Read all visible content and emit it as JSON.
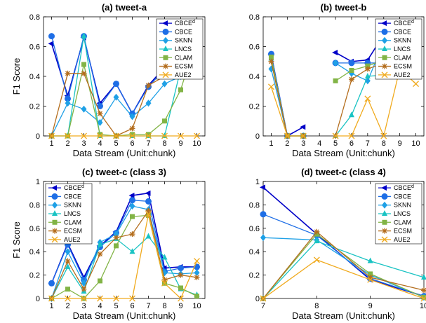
{
  "chart_data": [
    {
      "type": "line",
      "title": "(a) tweet-a",
      "xlabel": "Data Stream (Unit:chunk)",
      "ylabel": "F1 Score",
      "x": [
        1,
        2,
        3,
        4,
        5,
        6,
        7,
        8,
        9,
        10
      ],
      "xlim": [
        0.5,
        10.5
      ],
      "ylim": [
        0,
        0.8
      ],
      "yticks": [
        "0",
        "0.2",
        "0.4",
        "0.6",
        "0.8"
      ],
      "legend_position": "top-right",
      "series": [
        {
          "name": "CBCE",
          "sup": "d",
          "color": "#0000c8",
          "marker": "triangle-left",
          "values": [
            0.62,
            0.27,
            0.66,
            0.22,
            0.35,
            0.15,
            0.34,
            0.46,
            0.53,
            0.69
          ]
        },
        {
          "name": "CBCE",
          "sup": "",
          "color": "#1e6ee6",
          "marker": "circle",
          "values": [
            0.67,
            0.25,
            0.67,
            0.2,
            0.35,
            0.15,
            0.33,
            0.45,
            0.52,
            0.69
          ]
        },
        {
          "name": "SKNN",
          "sup": "",
          "color": "#1ea0e6",
          "marker": "diamond",
          "values": [
            0.0,
            0.22,
            0.18,
            0.09,
            0.26,
            0.13,
            0.22,
            0.35,
            0.4,
            0.67
          ]
        },
        {
          "name": "LNCS",
          "sup": "",
          "color": "#19c3c3",
          "marker": "triangle-up",
          "values": [
            0.0,
            0.0,
            0.67,
            0.0,
            0.0,
            0.0,
            0.0,
            0.0,
            0.45,
            0.55
          ]
        },
        {
          "name": "CLAM",
          "sup": "",
          "color": "#82b446",
          "marker": "square",
          "values": [
            0.0,
            0.0,
            0.48,
            0.01,
            0.0,
            0.01,
            0.01,
            0.1,
            0.31,
            0.66
          ]
        },
        {
          "name": "ECSM",
          "sup": "",
          "color": "#b46e1e",
          "marker": "star",
          "values": [
            0.0,
            0.42,
            0.42,
            0.15,
            0.0,
            0.05,
            0.34,
            0.4,
            0.48,
            0.6
          ]
        },
        {
          "name": "AUE2",
          "sup": "",
          "color": "#f0aa1e",
          "marker": "x",
          "values": [
            0.0,
            0.0,
            0.0,
            0.0,
            0.0,
            0.0,
            0.0,
            0.0,
            0.0,
            0.0
          ]
        }
      ]
    },
    {
      "type": "line",
      "title": "(b) tweet-b",
      "xlabel": "Data Stream (Unit:chunk)",
      "ylabel": "",
      "x": [
        1,
        2,
        3,
        4,
        5,
        6,
        7,
        8,
        9,
        10
      ],
      "xlim": [
        0.5,
        10.5
      ],
      "ylim": [
        0,
        0.8
      ],
      "yticks": [
        "0",
        "0.2",
        "0.4",
        "0.6",
        "0.8"
      ],
      "legend_position": "top-right",
      "series": [
        {
          "name": "CBCE",
          "sup": "d",
          "color": "#0000c8",
          "marker": "triangle-left",
          "values": [
            0.55,
            0.0,
            0.06,
            null,
            0.56,
            0.5,
            0.51,
            0.68,
            0.63,
            0.62
          ]
        },
        {
          "name": "CBCE",
          "sup": "",
          "color": "#1e6ee6",
          "marker": "circle",
          "values": [
            0.55,
            0.0,
            0.0,
            null,
            0.49,
            0.49,
            0.49,
            0.49,
            0.56,
            0.51
          ]
        },
        {
          "name": "SKNN",
          "sup": "",
          "color": "#1ea0e6",
          "marker": "diamond",
          "values": [
            0.45,
            0.0,
            0.0,
            null,
            0.49,
            0.42,
            0.37,
            0.63,
            0.53,
            0.51
          ]
        },
        {
          "name": "LNCS",
          "sup": "",
          "color": "#19c3c3",
          "marker": "triangle-up",
          "values": [
            0.52,
            0.0,
            0.0,
            null,
            0.0,
            0.14,
            0.4,
            0.41,
            0.55,
            0.56
          ]
        },
        {
          "name": "CLAM",
          "sup": "",
          "color": "#82b446",
          "marker": "square",
          "values": [
            0.53,
            0.0,
            0.0,
            null,
            0.37,
            0.44,
            0.47,
            0.51,
            0.57,
            0.57
          ]
        },
        {
          "name": "ECSM",
          "sup": "",
          "color": "#b46e1e",
          "marker": "star",
          "values": [
            0.5,
            0.0,
            0.0,
            null,
            0.0,
            0.38,
            0.45,
            0.49,
            0.57,
            0.52
          ]
        },
        {
          "name": "AUE2",
          "sup": "",
          "color": "#f0aa1e",
          "marker": "x",
          "values": [
            0.33,
            0.0,
            0.0,
            null,
            0.0,
            0.0,
            0.25,
            0.0,
            0.45,
            0.35
          ]
        }
      ]
    },
    {
      "type": "line",
      "title": "(c) tweet-c (class 3)",
      "xlabel": "Data Stream (Unit:chunk)",
      "ylabel": "F1 Score",
      "x": [
        1,
        2,
        3,
        4,
        5,
        6,
        7,
        8,
        9,
        10
      ],
      "xlim": [
        0.5,
        10.5
      ],
      "ylim": [
        0,
        1
      ],
      "yticks": [
        "0",
        "0.2",
        "0.4",
        "0.6",
        "0.8",
        "1"
      ],
      "legend_position": "top-left",
      "series": [
        {
          "name": "CBCE",
          "sup": "d",
          "color": "#0000c8",
          "marker": "triangle-left",
          "values": [
            0.13,
            0.47,
            0.18,
            0.45,
            0.57,
            0.88,
            0.9,
            0.26,
            0.27,
            0.27
          ]
        },
        {
          "name": "CBCE",
          "sup": "",
          "color": "#1e6ee6",
          "marker": "circle",
          "values": [
            0.13,
            0.46,
            0.16,
            0.44,
            0.56,
            0.84,
            0.83,
            0.23,
            0.26,
            0.27
          ]
        },
        {
          "name": "SKNN",
          "sup": "",
          "color": "#1ea0e6",
          "marker": "diamond",
          "values": [
            0.0,
            0.4,
            0.13,
            0.48,
            0.55,
            0.79,
            0.76,
            0.22,
            0.21,
            0.22
          ]
        },
        {
          "name": "LNCS",
          "sup": "",
          "color": "#19c3c3",
          "marker": "triangle-up",
          "values": [
            0.0,
            0.27,
            0.06,
            0.46,
            0.51,
            0.4,
            0.53,
            0.35,
            0.08,
            0.03
          ]
        },
        {
          "name": "CLAM",
          "sup": "",
          "color": "#82b446",
          "marker": "square",
          "values": [
            0.0,
            0.08,
            0.0,
            0.15,
            0.45,
            0.7,
            0.71,
            0.13,
            0.09,
            0.02
          ]
        },
        {
          "name": "ECSM",
          "sup": "",
          "color": "#b46e1e",
          "marker": "star",
          "values": [
            0.0,
            0.32,
            0.08,
            0.38,
            0.52,
            0.55,
            0.75,
            0.16,
            0.2,
            0.18
          ]
        },
        {
          "name": "AUE2",
          "sup": "",
          "color": "#f0aa1e",
          "marker": "x",
          "values": [
            0.0,
            0.0,
            0.0,
            0.0,
            0.0,
            0.0,
            0.72,
            0.13,
            0.0,
            0.32
          ]
        }
      ]
    },
    {
      "type": "line",
      "title": "(d) tweet-c (class 4)",
      "xlabel": "Data Stream (Unit:chunk)",
      "ylabel": "",
      "x": [
        7,
        8,
        9,
        10
      ],
      "xlim": [
        7,
        10
      ],
      "ylim": [
        0,
        1
      ],
      "yticks": [
        "0",
        "0.2",
        "0.4",
        "0.6",
        "0.8",
        "1"
      ],
      "legend_position": "top-right",
      "series": [
        {
          "name": "CBCE",
          "sup": "d",
          "color": "#0000c8",
          "marker": "triangle-left",
          "values": [
            0.95,
            0.55,
            0.16,
            0.02
          ]
        },
        {
          "name": "CBCE",
          "sup": "",
          "color": "#1e6ee6",
          "marker": "circle",
          "values": [
            0.72,
            0.54,
            0.17,
            0.02
          ]
        },
        {
          "name": "SKNN",
          "sup": "",
          "color": "#1ea0e6",
          "marker": "diamond",
          "values": [
            0.52,
            0.5,
            0.2,
            0.01
          ]
        },
        {
          "name": "LNCS",
          "sup": "",
          "color": "#19c3c3",
          "marker": "triangle-up",
          "values": [
            0.0,
            0.49,
            0.32,
            0.18
          ]
        },
        {
          "name": "CLAM",
          "sup": "",
          "color": "#82b446",
          "marker": "square",
          "values": [
            0.0,
            0.55,
            0.21,
            0.01
          ]
        },
        {
          "name": "ECSM",
          "sup": "",
          "color": "#b46e1e",
          "marker": "star",
          "values": [
            0.0,
            0.57,
            0.18,
            0.07
          ]
        },
        {
          "name": "AUE2",
          "sup": "",
          "color": "#f0aa1e",
          "marker": "x",
          "values": [
            0.0,
            0.33,
            0.16,
            0.0
          ]
        }
      ]
    }
  ]
}
